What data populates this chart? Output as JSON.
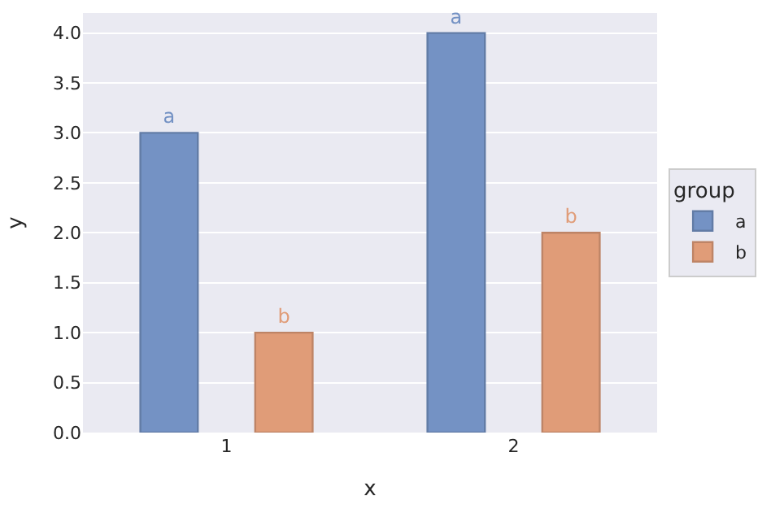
{
  "chart_data": {
    "type": "bar",
    "xlabel": "x",
    "ylabel": "y",
    "legend_title": "group",
    "legend": "right",
    "categories": [
      "1",
      "2"
    ],
    "series": [
      {
        "name": "a",
        "color": "#7492c4",
        "values": [
          3.0,
          4.0
        ],
        "value_labels": [
          "a",
          "a"
        ]
      },
      {
        "name": "b",
        "color": "#e09c78",
        "values": [
          1.0,
          2.0
        ],
        "value_labels": [
          "b",
          "b"
        ]
      }
    ],
    "ylim": [
      0,
      4.2
    ],
    "yticks": [
      {
        "value": 0,
        "label": "0.0"
      },
      0.5,
      {
        "value": 1,
        "label": "1.0"
      },
      1.5,
      {
        "value": 2,
        "label": "2.0"
      },
      2.5,
      {
        "value": 3,
        "label": "3.0"
      },
      3.5,
      {
        "value": 4,
        "label": "4.0"
      }
    ],
    "grid": "y"
  }
}
